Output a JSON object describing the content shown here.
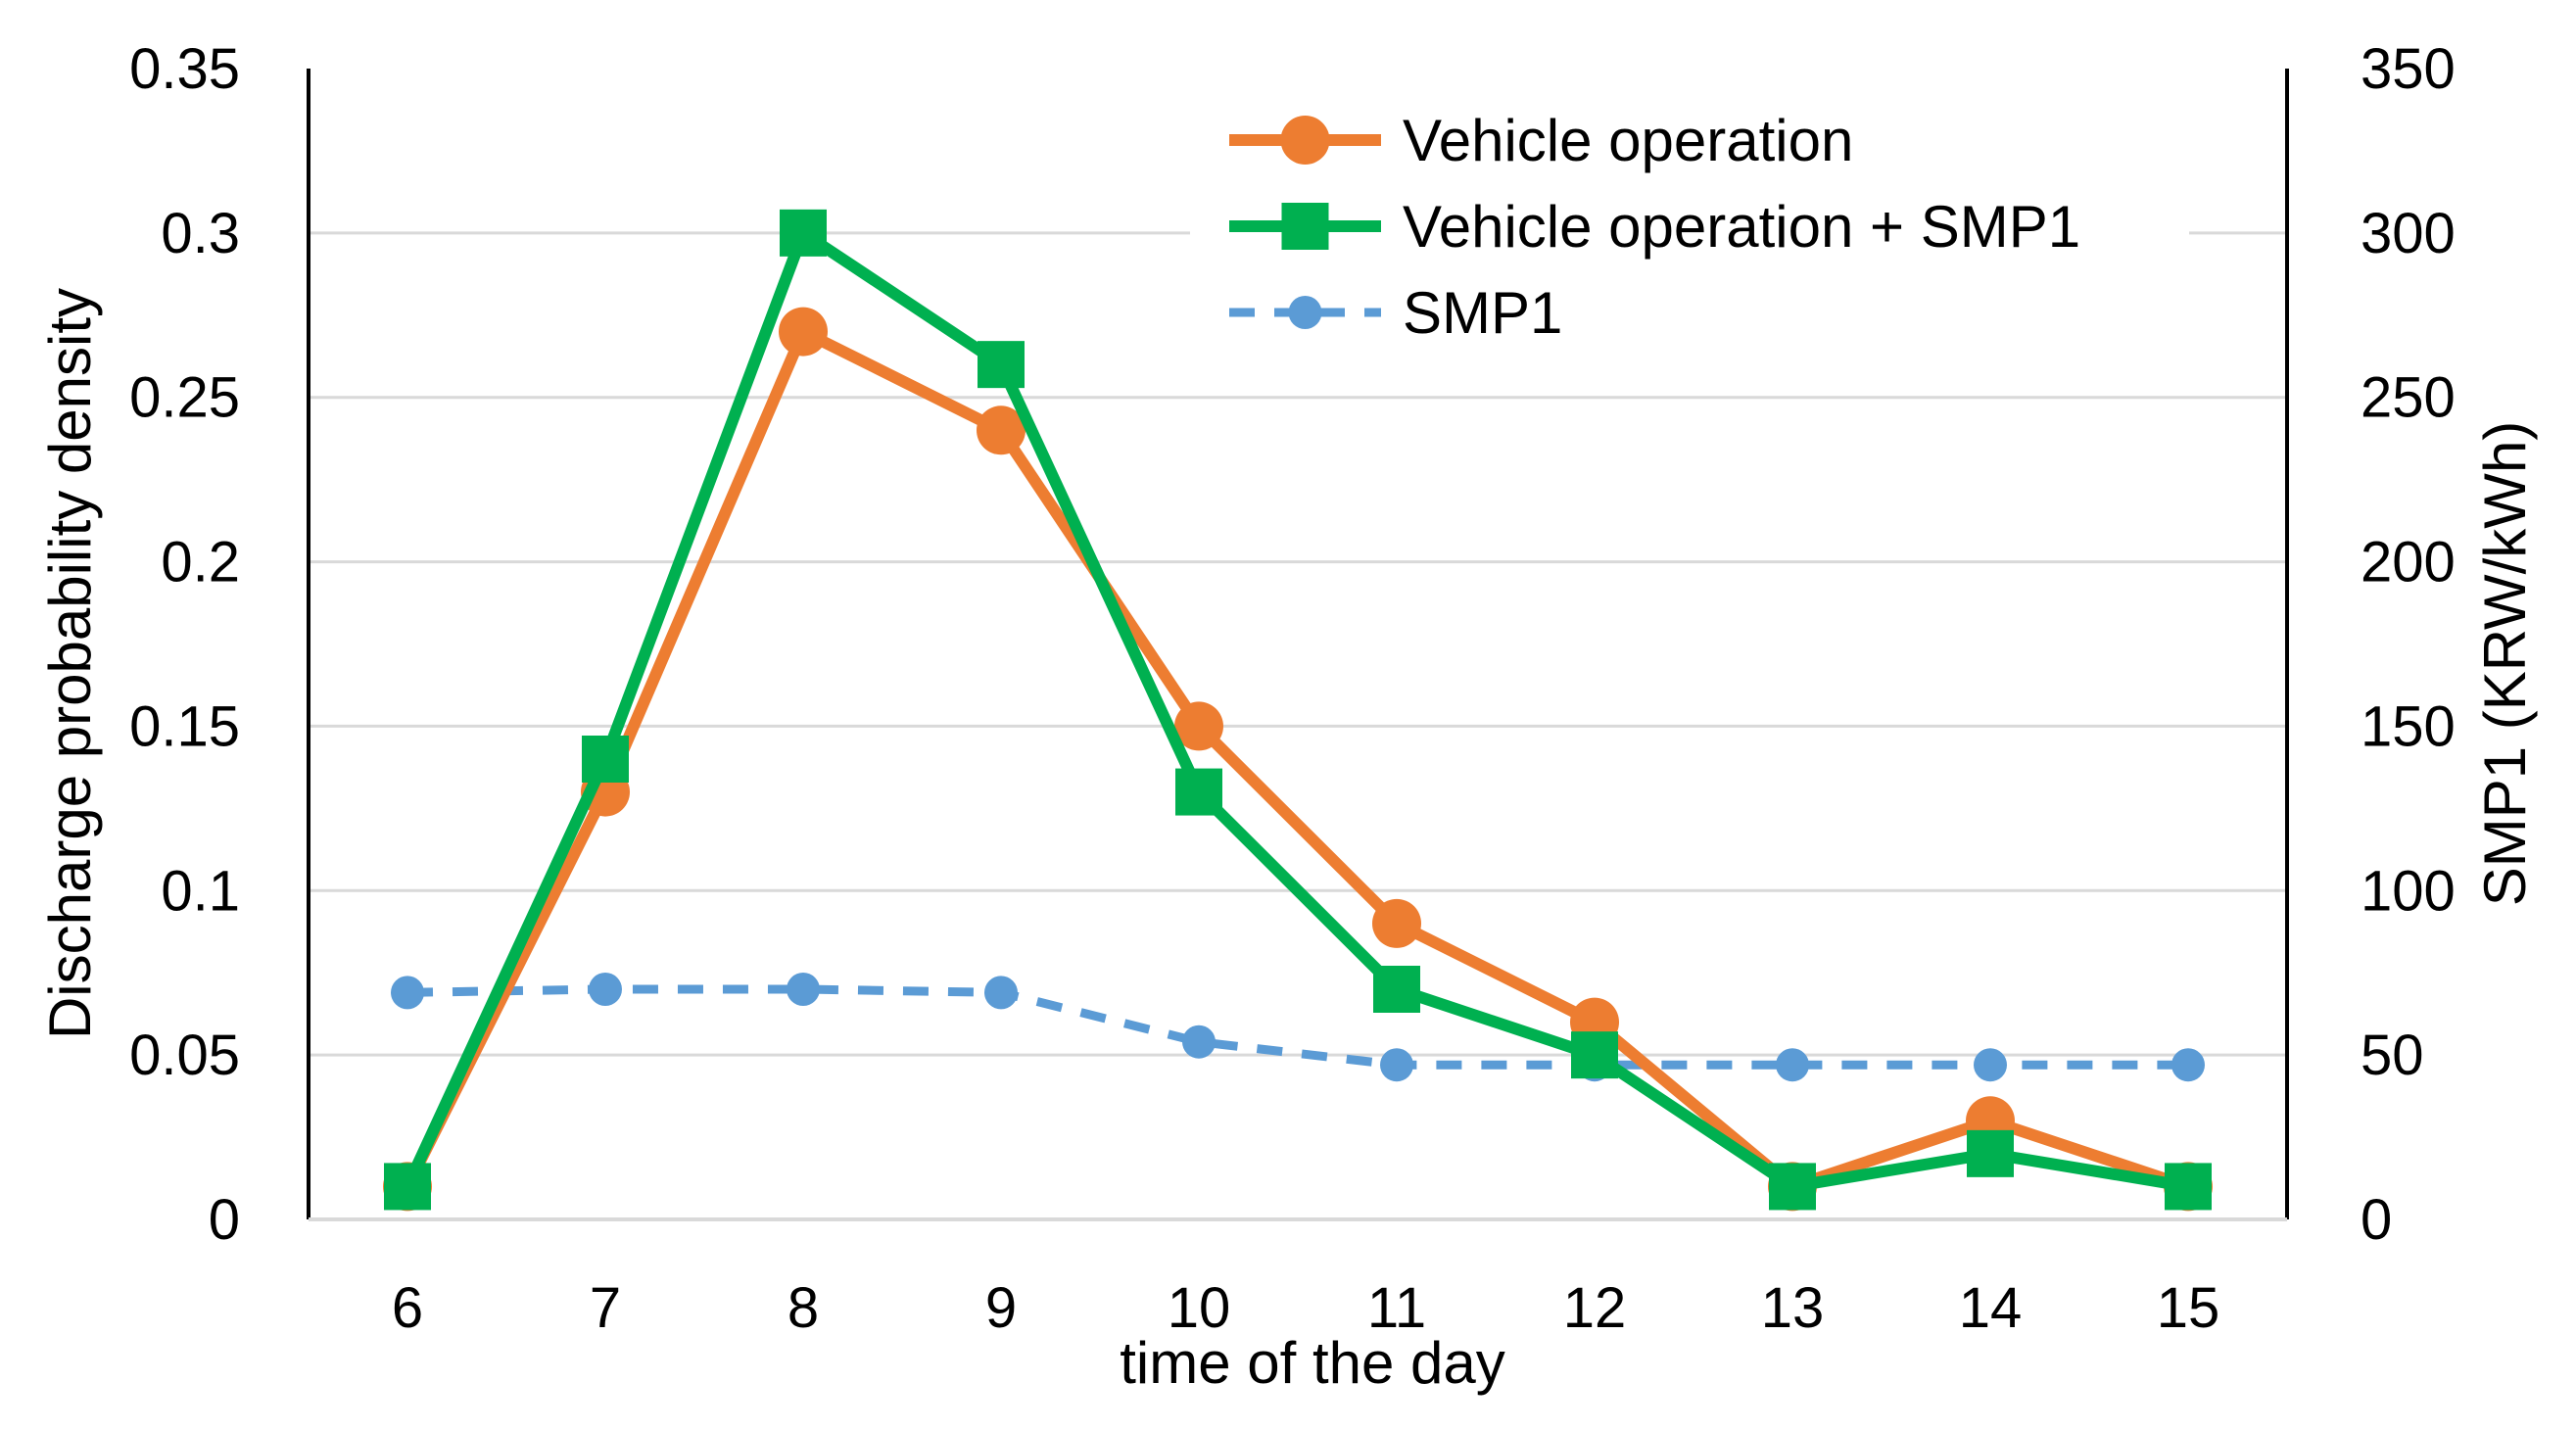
{
  "chart_data": {
    "type": "line",
    "title": "",
    "xlabel": "time of the day",
    "ylabel_left": "Discharge probability density",
    "ylabel_right": "SMP1 (KRW/kWh)",
    "x": [
      6,
      7,
      8,
      9,
      10,
      11,
      12,
      13,
      14,
      15
    ],
    "xtick_labels": [
      "6",
      "7",
      "8",
      "9",
      "10",
      "11",
      "12",
      "13",
      "14",
      "15"
    ],
    "ylim_left": [
      0,
      0.35
    ],
    "yticks_left": [
      "0",
      "0.05",
      "0.1",
      "0.15",
      "0.2",
      "0.25",
      "0.3",
      "0.35"
    ],
    "ylim_right": [
      0,
      350
    ],
    "yticks_right": [
      "0",
      "50",
      "100",
      "150",
      "200",
      "250",
      "300",
      "350"
    ],
    "grid": true,
    "legend_position": "top-right",
    "series": [
      {
        "name": "Vehicle operation",
        "axis": "left",
        "color": "#ED7D31",
        "marker": "circle",
        "line": "solid",
        "values": [
          0.01,
          0.13,
          0.27,
          0.24,
          0.15,
          0.09,
          0.06,
          0.01,
          0.03,
          0.01
        ]
      },
      {
        "name": "Vehicle operation + SMP1",
        "axis": "left",
        "color": "#00B050",
        "marker": "square",
        "line": "solid",
        "values": [
          0.01,
          0.14,
          0.3,
          0.26,
          0.13,
          0.07,
          0.05,
          0.01,
          0.02,
          0.01
        ]
      },
      {
        "name": "SMP1",
        "axis": "right",
        "color": "#5B9BD5",
        "marker": "circle",
        "line": "dashed",
        "values": [
          69,
          70,
          70,
          69,
          54,
          47,
          47,
          47,
          47,
          47
        ]
      }
    ]
  }
}
